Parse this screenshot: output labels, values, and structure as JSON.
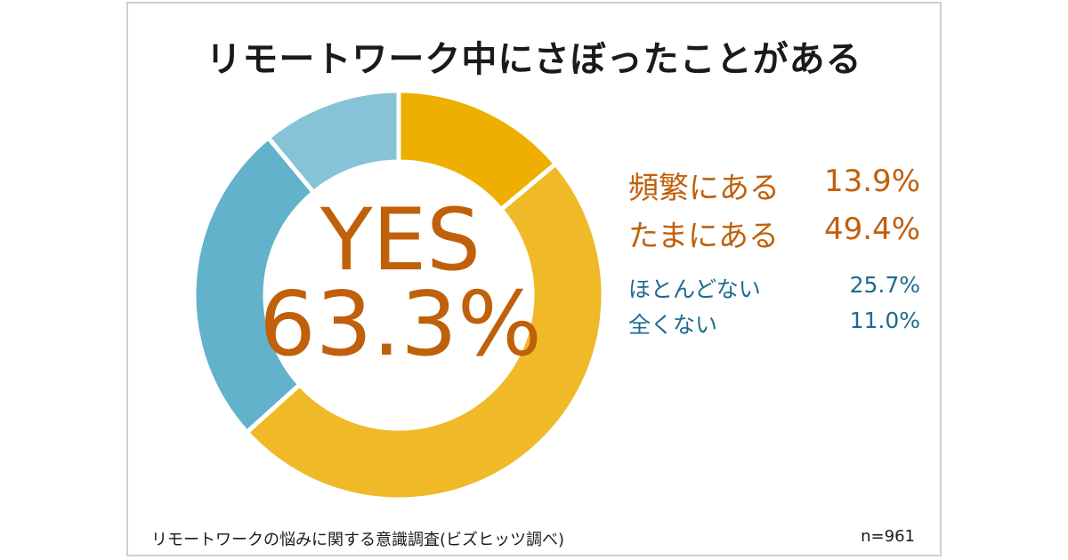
{
  "title": "リモートワーク中にさぼったことがある",
  "center": {
    "yes_label": "YES",
    "yes_value": "63.3%"
  },
  "legend": [
    {
      "label": "頻繁にある",
      "value": "13.9%"
    },
    {
      "label": "たまにある",
      "value": "49.4%"
    },
    {
      "label": "ほとんどない",
      "value": "25.7%"
    },
    {
      "label": "全くない",
      "value": "11.0%"
    }
  ],
  "footnote": "リモートワークの悩みに関する意識調査(ビズヒッツ調べ)",
  "sample": "n=961",
  "chart_data": {
    "type": "pie",
    "title": "リモートワーク中にさぼったことがある",
    "categories": [
      "頻繁にある",
      "たまにある",
      "ほとんどない",
      "全くない"
    ],
    "values": [
      13.9,
      49.4,
      25.7,
      11.0
    ],
    "colors": [
      "#eeaf00",
      "#f0b928",
      "#62b2cc",
      "#86c3d7"
    ],
    "donut": true,
    "center_text": [
      "YES",
      "63.3%"
    ]
  }
}
